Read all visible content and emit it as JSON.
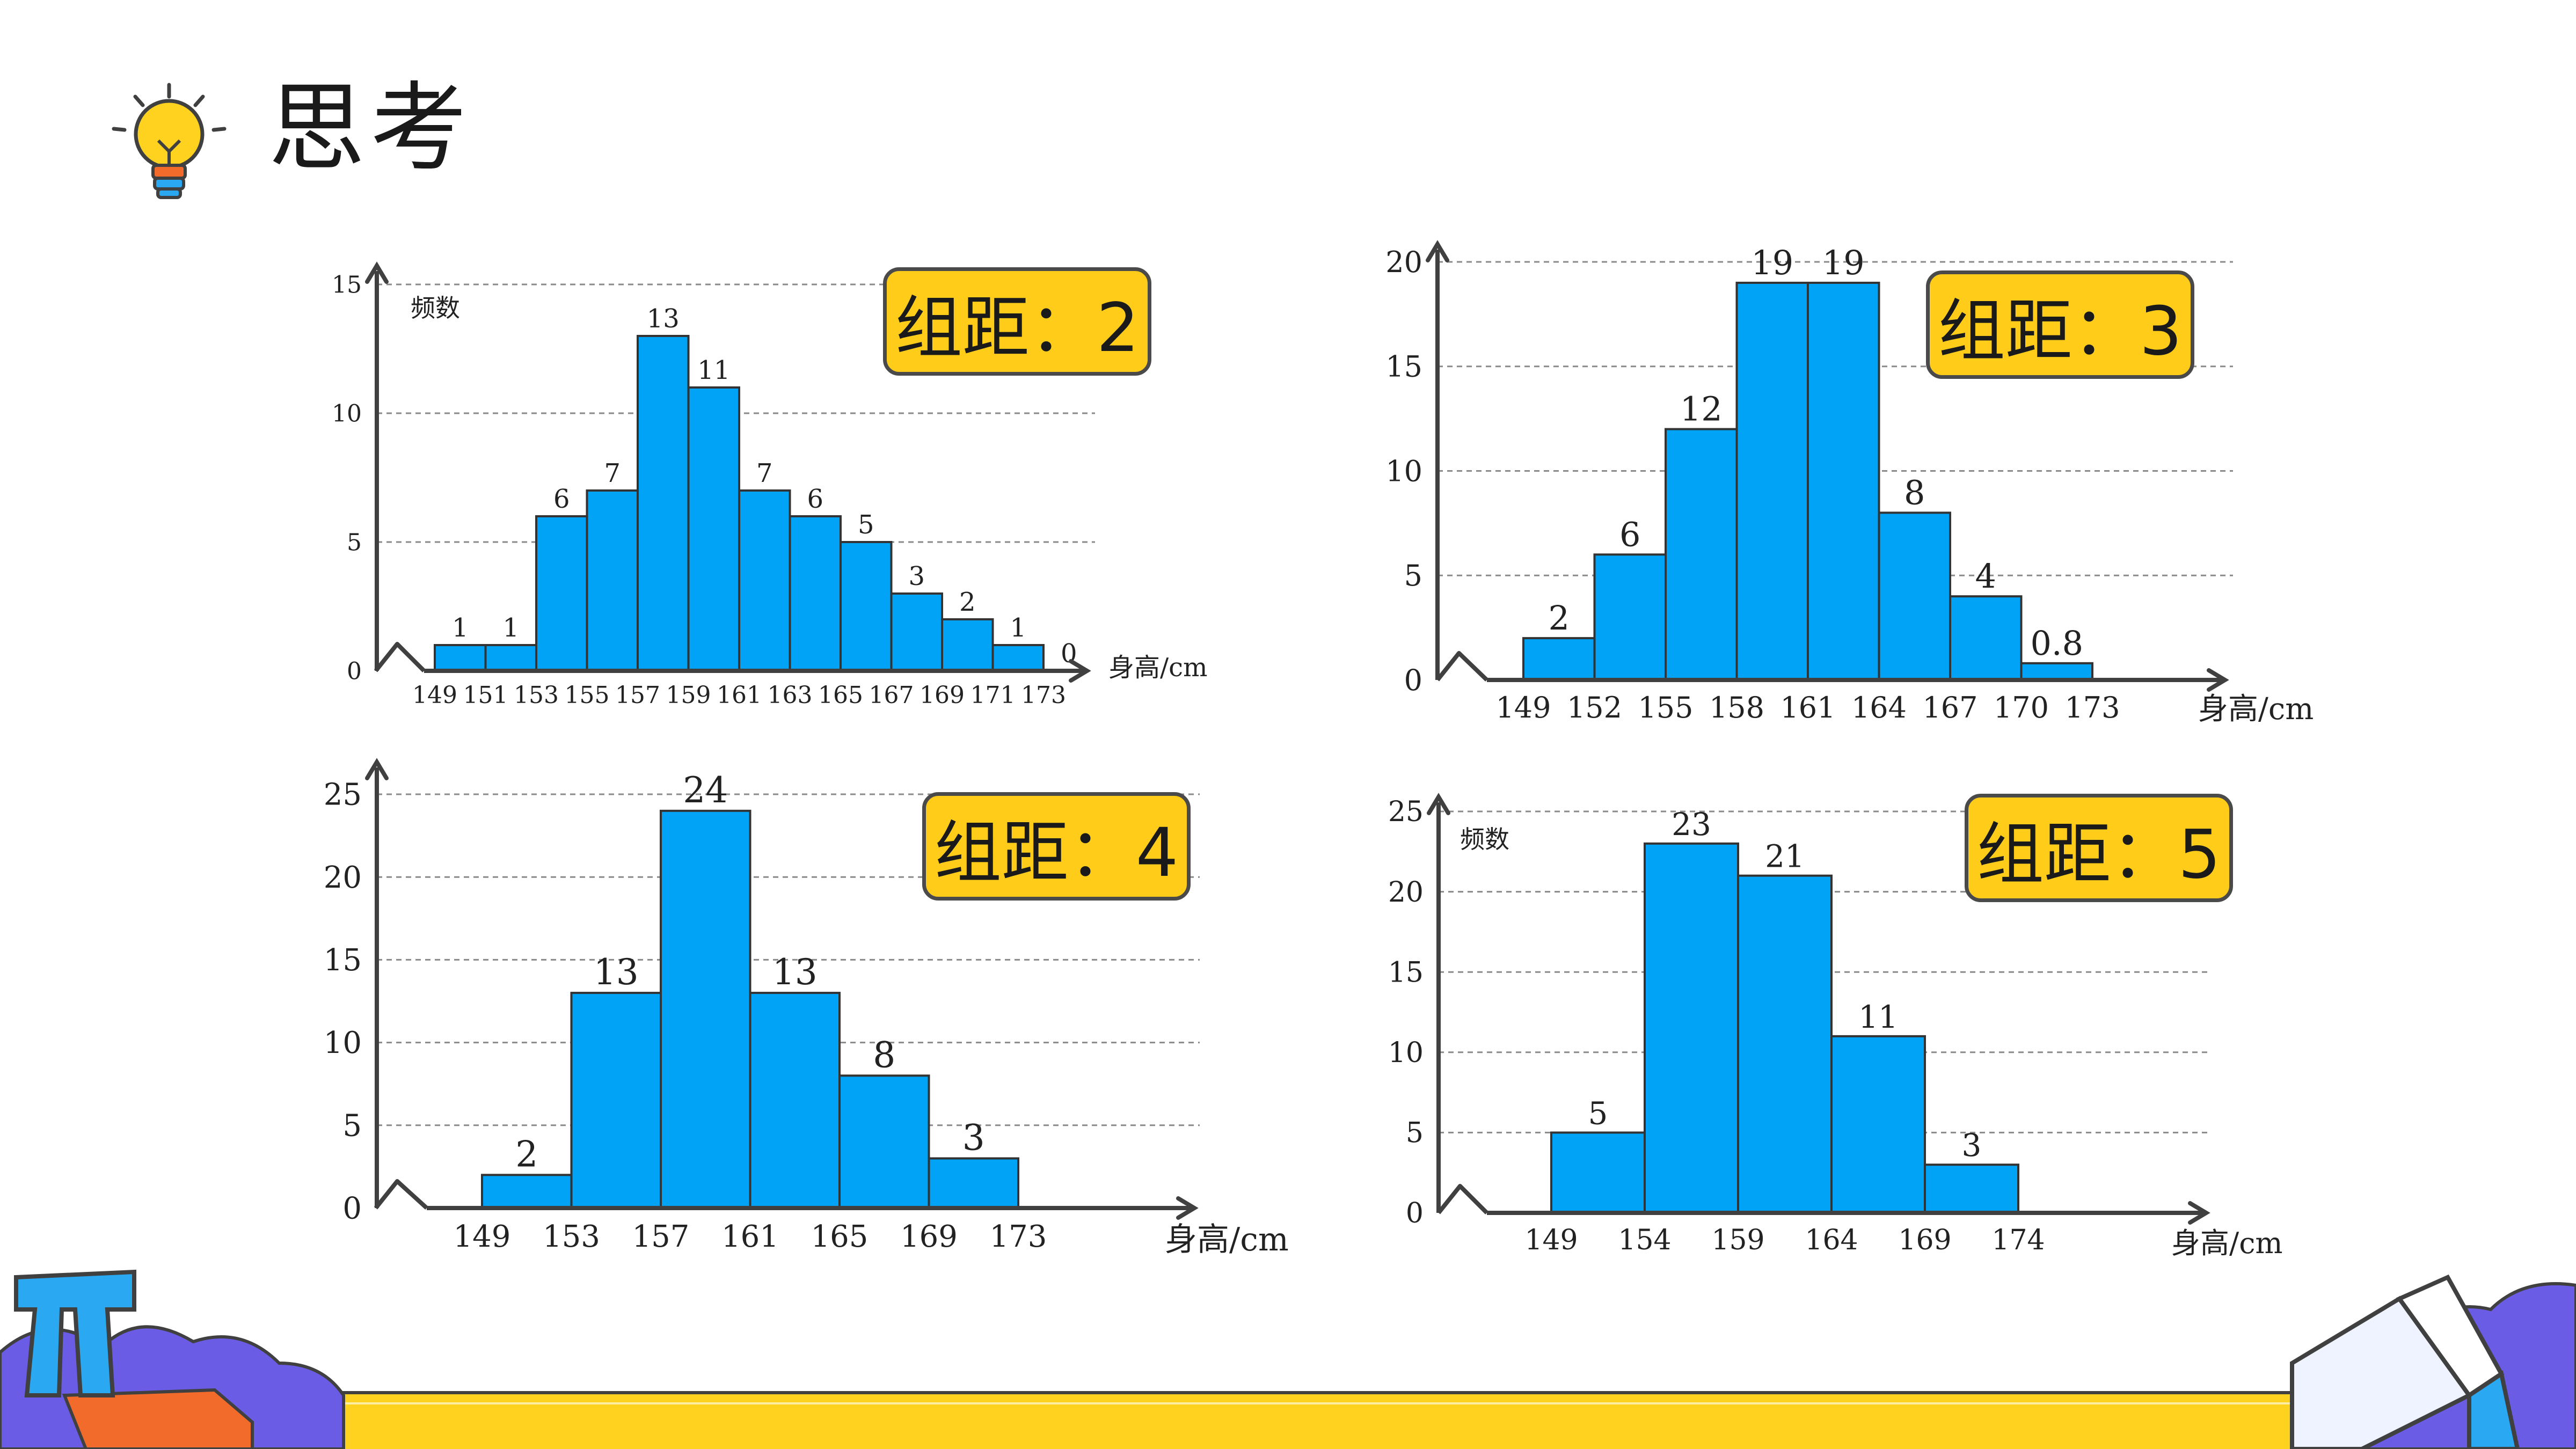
{
  "page": {
    "title": "思考",
    "colors": {
      "bar": "#00a3f5",
      "badge": "#ffcc1a",
      "axis": "#404040"
    }
  },
  "chart_data": [
    {
      "type": "bar",
      "badge": "组距：2",
      "ylabel": "频数",
      "xlabel": "身高/cm",
      "ylim": [
        0,
        15
      ],
      "yticks": [
        0,
        5,
        10,
        15
      ],
      "xticks": [
        "149",
        "151",
        "153",
        "155",
        "157",
        "159",
        "161",
        "163",
        "165",
        "167",
        "169",
        "171",
        "173"
      ],
      "values": [
        1,
        1,
        6,
        7,
        13,
        11,
        7,
        6,
        5,
        3,
        2,
        1,
        0
      ],
      "grid": true
    },
    {
      "type": "bar",
      "badge": "组距：3",
      "ylabel": "",
      "xlabel": "身高/cm",
      "ylim": [
        0,
        20
      ],
      "yticks": [
        0,
        5,
        10,
        15,
        20
      ],
      "xticks": [
        "149",
        "152",
        "155",
        "158",
        "161",
        "164",
        "167",
        "170",
        "173"
      ],
      "values": [
        2,
        6,
        12,
        19,
        19,
        8,
        4,
        0.8
      ],
      "grid": true
    },
    {
      "type": "bar",
      "badge": "组距：4",
      "ylabel": "",
      "xlabel": "身高/cm",
      "ylim": [
        0,
        25
      ],
      "yticks": [
        0,
        5,
        10,
        15,
        20,
        25
      ],
      "xticks": [
        "149",
        "153",
        "157",
        "161",
        "165",
        "169",
        "173"
      ],
      "values": [
        2,
        13,
        24,
        13,
        8,
        3
      ],
      "grid": true
    },
    {
      "type": "bar",
      "badge": "组距：5",
      "ylabel": "频数",
      "xlabel": "身高/cm",
      "ylim": [
        0,
        25
      ],
      "yticks": [
        0,
        5,
        10,
        15,
        20,
        25
      ],
      "xticks": [
        "149",
        "154",
        "159",
        "164",
        "169",
        "174"
      ],
      "values": [
        5,
        23,
        21,
        11,
        3
      ],
      "grid": true
    }
  ]
}
